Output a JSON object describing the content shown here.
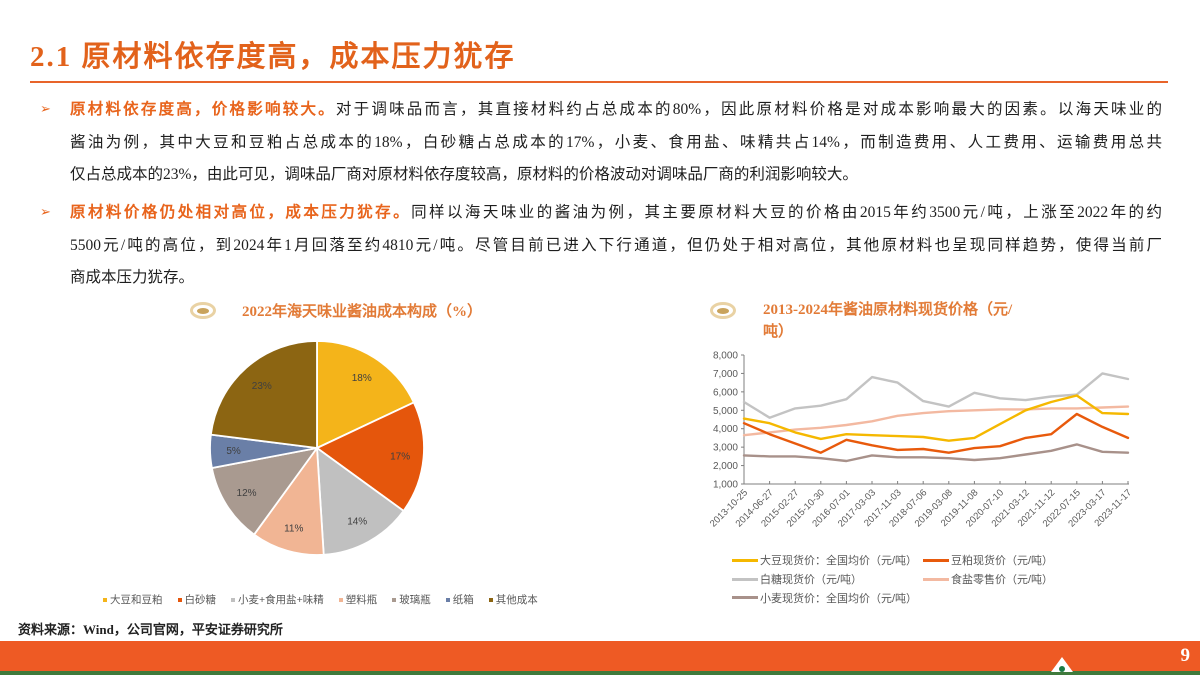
{
  "page": {
    "title": "2.1 原材料依存度高，成本压力犹存",
    "source": "资料来源：Wind，公司官网，平安证券研究所",
    "page_number": "9"
  },
  "colors": {
    "accent": "#e2621b",
    "footer_bar": "#ee5a24",
    "footer_line": "#3f7a3c"
  },
  "bullets": [
    {
      "marker": "➢",
      "lines": [
        {
          "bold": "原材料依存度高，价格影响较大。",
          "text": "对于调味品而言，其直接材料约占总成本的80%，因此原材料价格是对成本影响最大的因素。以海天味业的"
        },
        {
          "text": "酱油为例，其中大豆和豆粕占总成本的18%，白砂糖占总成本的17%，小麦、食用盐、味精共占14%，而制造费用、人工费用、运输费用总共"
        },
        {
          "text": "仅占总成本的23%，由此可见，调味品厂商对原材料依存度较高，原材料的价格波动对调味品厂商的利润影响较大。"
        }
      ]
    },
    {
      "marker": "➢",
      "lines": [
        {
          "bold": "原材料价格仍处相对高位，成本压力犹存。",
          "text": "同样以海天味业的酱油为例，其主要原材料大豆的价格由2015年约3500元/吨，上涨至2022年的约"
        },
        {
          "text": "5500元/吨的高位，到2024年1月回落至约4810元/吨。尽管目前已进入下行通道，但仍处于相对高位，其他原材料也呈现同样趋势，使得当前厂"
        },
        {
          "text": "商成本压力犹存。"
        }
      ]
    }
  ],
  "charts": {
    "left": {
      "title": "2022年海天味业酱油成本构成（%）",
      "icon": "target-circle-icon"
    },
    "right": {
      "title_line1": "2013-2024年酱油原材料现货价格（元/",
      "title_line2": "吨）",
      "icon": "target-circle-icon"
    }
  },
  "chart_data": [
    {
      "type": "pie",
      "title": "2022年海天味业酱油成本构成（%）",
      "categories": [
        "大豆和豆粕",
        "白砂糖",
        "小麦+食用盐+味精",
        "塑料瓶",
        "玻璃瓶",
        "纸箱",
        "其他成本"
      ],
      "values": [
        18,
        17,
        14,
        11,
        12,
        5,
        23
      ],
      "data_labels": [
        "18%",
        "17%",
        "14%",
        "11%",
        "12%",
        "5%",
        "23%"
      ],
      "colors": [
        "#f4b41a",
        "#e5560c",
        "#c0c0c0",
        "#f1b594",
        "#a99a90",
        "#6a7fa7",
        "#8c6512"
      ],
      "start_angle": 0,
      "direction": "clockwise",
      "legend_position": "bottom"
    },
    {
      "type": "line",
      "title": "2013-2024年酱油原材料现货价格（元/吨）",
      "xlabel": "",
      "ylabel": "",
      "categories": [
        "2013-10-25",
        "2014-06-27",
        "2015-02-27",
        "2015-10-30",
        "2016-07-01",
        "2017-03-03",
        "2017-11-03",
        "2018-07-06",
        "2019-03-08",
        "2019-11-08",
        "2020-07-10",
        "2021-03-12",
        "2021-11-12",
        "2022-07-15",
        "2023-03-17",
        "2023-11-17"
      ],
      "ylim": [
        1000,
        8000
      ],
      "yticks": [
        1000,
        2000,
        3000,
        4000,
        5000,
        6000,
        7000,
        8000
      ],
      "ytick_labels": [
        "1,000",
        "2,000",
        "3,000",
        "4,000",
        "5,000",
        "6,000",
        "7,000",
        "8,000"
      ],
      "grid": false,
      "legend_position": "bottom",
      "series": [
        {
          "name": "大豆现货价：全国均价（元/吨）",
          "color": "#f5b800",
          "values": [
            4550,
            4300,
            3800,
            3450,
            3700,
            3650,
            3600,
            3550,
            3350,
            3500,
            4250,
            5000,
            5450,
            5800,
            4850,
            4800
          ]
        },
        {
          "name": "豆粕现货价（元/吨）",
          "color": "#e85a0c",
          "values": [
            4300,
            3700,
            3200,
            2700,
            3400,
            3100,
            2850,
            2900,
            2700,
            2950,
            3050,
            3500,
            3700,
            4800,
            4100,
            3500
          ]
        },
        {
          "name": "白糖现货价（元/吨）",
          "color": "#c3c3c3",
          "values": [
            5450,
            4600,
            5100,
            5250,
            5600,
            6800,
            6500,
            5500,
            5200,
            5950,
            5650,
            5550,
            5750,
            5850,
            7000,
            6700
          ]
        },
        {
          "name": "食盐零售价（元/吨）",
          "color": "#f3b9a1",
          "values": [
            3650,
            3800,
            3950,
            4050,
            4200,
            4400,
            4700,
            4850,
            4950,
            5000,
            5050,
            5050,
            5100,
            5100,
            5150,
            5200
          ]
        },
        {
          "name": "小麦现货价：全国均价（元/吨）",
          "color": "#a8918a",
          "values": [
            2550,
            2500,
            2500,
            2400,
            2250,
            2550,
            2450,
            2450,
            2400,
            2300,
            2400,
            2600,
            2800,
            3150,
            2750,
            2700
          ]
        }
      ]
    }
  ]
}
